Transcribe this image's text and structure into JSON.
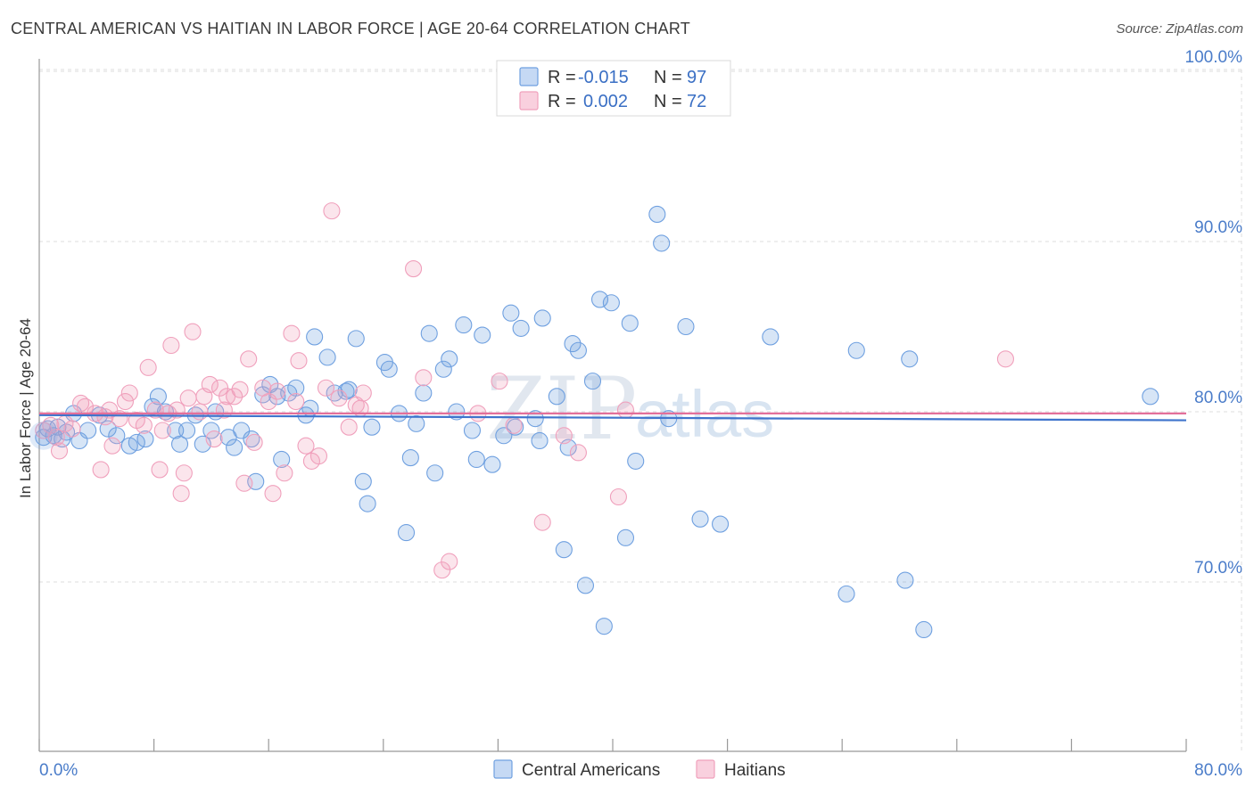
{
  "title": "CENTRAL AMERICAN VS HAITIAN IN LABOR FORCE | AGE 20-64 CORRELATION CHART",
  "source": "Source: ZipAtlas.com",
  "watermark": {
    "zip": "ZIP",
    "atlas": "atlas"
  },
  "legend": {
    "rows": [
      {
        "r_label": "R =",
        "r_value": "-0.015",
        "n_label": "N =",
        "n_value": "97",
        "color": "#6fa0e0"
      },
      {
        "r_label": "R =",
        "r_value": "0.002",
        "n_label": "N =",
        "n_value": "72",
        "color": "#f0a0bc"
      }
    ]
  },
  "chart_data": {
    "type": "scatter",
    "title": "CENTRAL AMERICAN VS HAITIAN IN LABOR FORCE | AGE 20-64 CORRELATION CHART",
    "xlabel": "",
    "ylabel": "In Labor Force | Age 20-64",
    "xlim": [
      0,
      80
    ],
    "ylim": [
      60,
      101
    ],
    "x_tick_labels": [
      "0.0%",
      "80.0%"
    ],
    "y_ticks": [
      70,
      80,
      90,
      100
    ],
    "y_tick_labels": [
      "70.0%",
      "80.0%",
      "90.0%",
      "100.0%"
    ],
    "grid": true,
    "legend_position": "top-center",
    "series": [
      {
        "name": "Central Americans",
        "color": "#6fa0e0",
        "trend": {
          "x": [
            0,
            80
          ],
          "y": [
            79.8,
            79.5
          ]
        },
        "points": [
          [
            0.3,
            78.5
          ],
          [
            0.6,
            79.0
          ],
          [
            1.0,
            78.6
          ],
          [
            1.3,
            79.1
          ],
          [
            1.6,
            78.4
          ],
          [
            1.9,
            78.8
          ],
          [
            2.4,
            79.9
          ],
          [
            2.8,
            78.3
          ],
          [
            3.4,
            78.9
          ],
          [
            4.2,
            79.8
          ],
          [
            4.8,
            79.0
          ],
          [
            5.4,
            78.6
          ],
          [
            6.3,
            78.0
          ],
          [
            6.8,
            78.2
          ],
          [
            7.4,
            78.4
          ],
          [
            7.9,
            80.3
          ],
          [
            8.3,
            80.9
          ],
          [
            8.8,
            80.0
          ],
          [
            9.5,
            78.9
          ],
          [
            9.8,
            78.1
          ],
          [
            10.3,
            78.9
          ],
          [
            10.9,
            79.8
          ],
          [
            11.4,
            78.1
          ],
          [
            12.0,
            78.9
          ],
          [
            12.3,
            80.0
          ],
          [
            13.2,
            78.5
          ],
          [
            13.6,
            77.9
          ],
          [
            14.1,
            78.9
          ],
          [
            14.8,
            78.4
          ],
          [
            15.1,
            75.9
          ],
          [
            15.6,
            81.0
          ],
          [
            16.1,
            81.6
          ],
          [
            16.6,
            80.9
          ],
          [
            16.9,
            77.2
          ],
          [
            17.4,
            81.1
          ],
          [
            17.9,
            81.4
          ],
          [
            18.6,
            79.8
          ],
          [
            18.9,
            80.2
          ],
          [
            19.2,
            84.4
          ],
          [
            20.1,
            83.2
          ],
          [
            20.6,
            81.1
          ],
          [
            21.4,
            81.2
          ],
          [
            21.6,
            81.3
          ],
          [
            22.1,
            84.3
          ],
          [
            22.6,
            75.9
          ],
          [
            22.9,
            74.6
          ],
          [
            23.2,
            79.1
          ],
          [
            24.1,
            82.9
          ],
          [
            24.4,
            82.5
          ],
          [
            25.1,
            79.9
          ],
          [
            25.6,
            72.9
          ],
          [
            25.9,
            77.3
          ],
          [
            26.3,
            79.3
          ],
          [
            26.8,
            81.1
          ],
          [
            27.2,
            84.6
          ],
          [
            27.6,
            76.4
          ],
          [
            28.2,
            82.5
          ],
          [
            28.6,
            83.1
          ],
          [
            29.1,
            80.0
          ],
          [
            29.6,
            85.1
          ],
          [
            30.2,
            78.9
          ],
          [
            30.5,
            77.2
          ],
          [
            30.9,
            84.5
          ],
          [
            31.6,
            76.9
          ],
          [
            32.4,
            78.6
          ],
          [
            32.9,
            85.8
          ],
          [
            33.2,
            79.1
          ],
          [
            33.6,
            84.9
          ],
          [
            34.6,
            79.6
          ],
          [
            34.9,
            78.3
          ],
          [
            35.1,
            85.5
          ],
          [
            36.1,
            80.9
          ],
          [
            36.6,
            71.9
          ],
          [
            36.9,
            77.9
          ],
          [
            37.2,
            84.0
          ],
          [
            37.6,
            83.6
          ],
          [
            38.1,
            69.8
          ],
          [
            38.6,
            81.8
          ],
          [
            39.1,
            86.6
          ],
          [
            39.4,
            67.4
          ],
          [
            39.9,
            86.4
          ],
          [
            40.9,
            72.6
          ],
          [
            41.2,
            85.2
          ],
          [
            41.6,
            77.1
          ],
          [
            43.1,
            91.6
          ],
          [
            43.4,
            89.9
          ],
          [
            43.9,
            79.6
          ],
          [
            45.1,
            85.0
          ],
          [
            46.1,
            73.7
          ],
          [
            47.5,
            73.4
          ],
          [
            51.0,
            84.4
          ],
          [
            56.3,
            69.3
          ],
          [
            57.0,
            83.6
          ],
          [
            60.4,
            70.1
          ],
          [
            60.7,
            83.1
          ],
          [
            61.7,
            67.2
          ],
          [
            77.5,
            80.9
          ]
        ]
      },
      {
        "name": "Haitians",
        "color": "#f0a0bc",
        "trend": {
          "x": [
            0,
            80
          ],
          "y": [
            79.9,
            79.9
          ]
        },
        "points": [
          [
            0.3,
            78.9
          ],
          [
            0.8,
            79.2
          ],
          [
            1.2,
            78.5
          ],
          [
            1.4,
            77.7
          ],
          [
            1.8,
            79.3
          ],
          [
            2.3,
            79.0
          ],
          [
            2.9,
            80.5
          ],
          [
            3.2,
            80.3
          ],
          [
            3.9,
            79.9
          ],
          [
            4.3,
            76.6
          ],
          [
            4.6,
            79.7
          ],
          [
            4.9,
            80.1
          ],
          [
            5.1,
            78.0
          ],
          [
            5.6,
            79.6
          ],
          [
            6.0,
            80.6
          ],
          [
            6.3,
            81.1
          ],
          [
            6.8,
            79.5
          ],
          [
            7.3,
            79.2
          ],
          [
            7.6,
            82.6
          ],
          [
            8.1,
            80.1
          ],
          [
            8.4,
            76.6
          ],
          [
            8.6,
            78.9
          ],
          [
            9.0,
            79.9
          ],
          [
            9.2,
            83.9
          ],
          [
            9.6,
            80.1
          ],
          [
            9.9,
            75.2
          ],
          [
            10.1,
            76.4
          ],
          [
            10.4,
            80.8
          ],
          [
            10.7,
            84.7
          ],
          [
            11.2,
            80.0
          ],
          [
            11.5,
            80.9
          ],
          [
            11.9,
            81.6
          ],
          [
            12.2,
            78.4
          ],
          [
            12.6,
            81.4
          ],
          [
            12.9,
            80.1
          ],
          [
            13.1,
            80.9
          ],
          [
            13.6,
            80.9
          ],
          [
            14.0,
            81.3
          ],
          [
            14.3,
            75.8
          ],
          [
            14.6,
            83.1
          ],
          [
            15.0,
            78.2
          ],
          [
            15.6,
            81.4
          ],
          [
            16.0,
            80.6
          ],
          [
            16.3,
            75.2
          ],
          [
            16.6,
            81.2
          ],
          [
            17.1,
            76.4
          ],
          [
            17.6,
            84.6
          ],
          [
            17.9,
            80.6
          ],
          [
            18.1,
            83.0
          ],
          [
            18.6,
            78.0
          ],
          [
            19.0,
            77.1
          ],
          [
            19.5,
            77.4
          ],
          [
            20.0,
            81.4
          ],
          [
            20.4,
            91.8
          ],
          [
            20.9,
            80.8
          ],
          [
            21.6,
            79.1
          ],
          [
            22.1,
            80.4
          ],
          [
            22.4,
            80.2
          ],
          [
            22.6,
            81.1
          ],
          [
            26.1,
            88.4
          ],
          [
            26.8,
            82.0
          ],
          [
            28.1,
            70.7
          ],
          [
            28.6,
            71.2
          ],
          [
            30.6,
            79.9
          ],
          [
            32.1,
            81.8
          ],
          [
            33.1,
            79.2
          ],
          [
            35.1,
            73.5
          ],
          [
            36.6,
            78.6
          ],
          [
            37.6,
            77.6
          ],
          [
            40.4,
            75.0
          ],
          [
            40.9,
            80.1
          ],
          [
            67.4,
            83.1
          ]
        ]
      }
    ]
  },
  "bottom_legend": [
    {
      "label": "Central Americans",
      "color": "#6fa0e0"
    },
    {
      "label": "Haitians",
      "color": "#f0a0bc"
    }
  ]
}
